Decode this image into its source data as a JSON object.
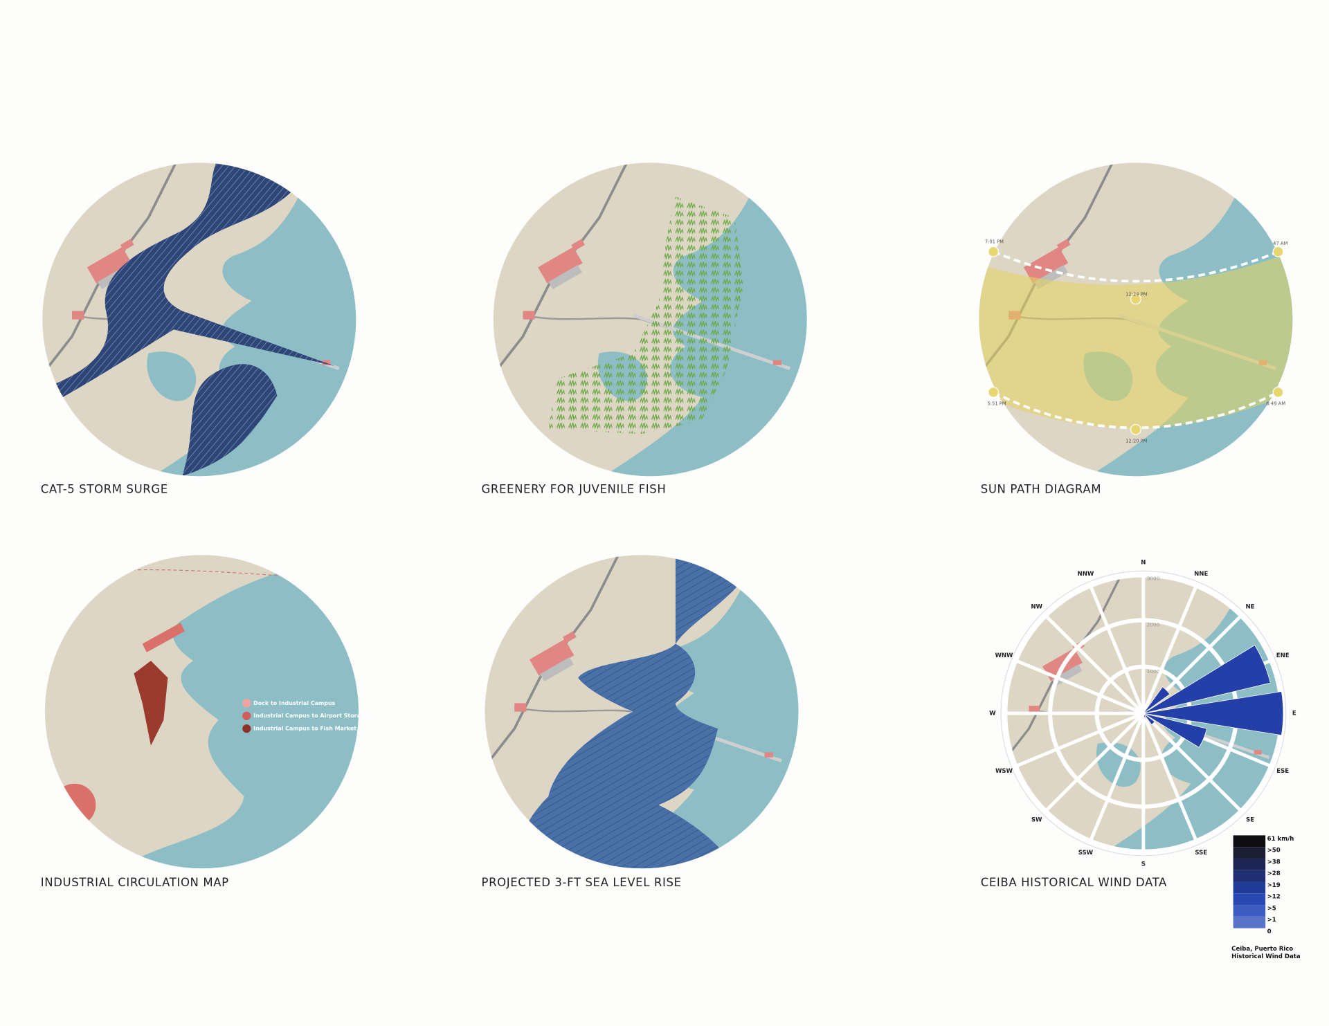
{
  "panels": [
    {
      "caption": "CAT-5 STORM SURGE"
    },
    {
      "caption": "GREENERY FOR JUVENILE FISH"
    },
    {
      "caption": "SUN PATH DIAGRAM"
    },
    {
      "caption": "INDUSTRIAL CIRCULATION MAP"
    },
    {
      "caption": "PROJECTED 3-FT SEA LEVEL RISE"
    },
    {
      "caption": "CEIBA HISTORICAL WIND DATA"
    }
  ],
  "sun_path": {
    "times": [
      "7:01 PM",
      "47 AM",
      "12:24 PM",
      "5:51 PM",
      "6:49 AM",
      "12:20 PM"
    ]
  },
  "circulation_legend": [
    "Dock to Industrial Campus",
    "Industrial Campus to Airport Storage",
    "Industrial Campus to Fish Market"
  ],
  "wind_rose": {
    "directions": [
      "N",
      "NNE",
      "NE",
      "ENE",
      "E",
      "ESE",
      "SE",
      "SSE",
      "S",
      "SSW",
      "SW",
      "WSW",
      "W",
      "WNW",
      "NW",
      "NNW"
    ],
    "rings": [
      1000,
      2000,
      3000
    ],
    "values": [
      0,
      0,
      700,
      2800,
      3000,
      1400,
      300,
      100,
      0,
      0,
      0,
      0,
      0,
      0,
      0,
      0
    ],
    "legend": {
      "levels": [
        "61 km/h",
        ">50",
        ">38",
        ">28",
        ">19",
        ">12",
        ">5",
        ">1",
        "0"
      ],
      "caption": [
        "Ceiba, Puerto Rico",
        "Historical Wind Data"
      ]
    }
  }
}
